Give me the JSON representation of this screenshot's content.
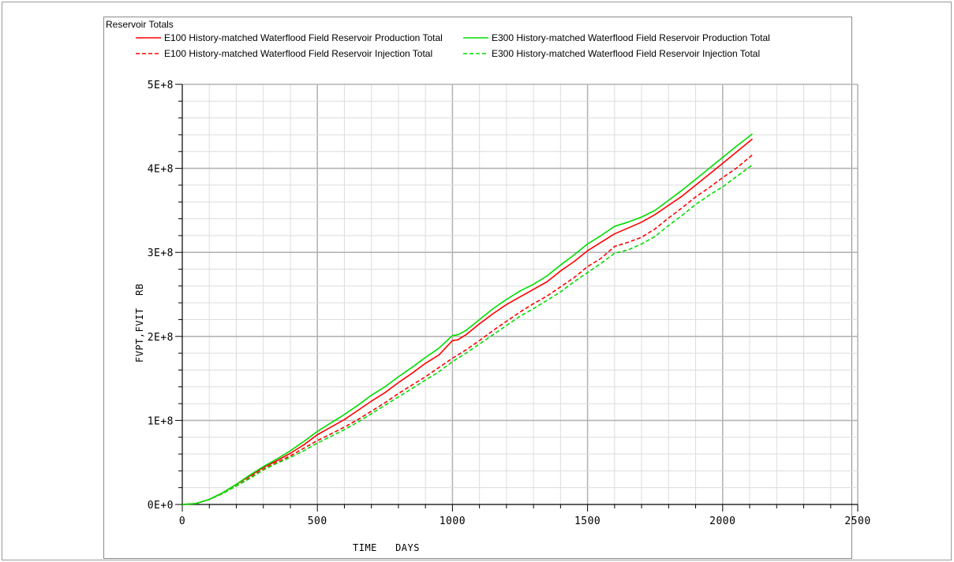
{
  "chart_data": {
    "type": "line",
    "title": "Reservoir Totals",
    "xlabel": "TIME   DAYS",
    "ylabel": "FVPT,FVIT  RB",
    "xlim": [
      0,
      2500
    ],
    "ylim": [
      0,
      500000000
    ],
    "x_ticks": [
      0,
      500,
      1000,
      1500,
      2000,
      2500
    ],
    "x_tick_labels": [
      "0",
      "500",
      "1000",
      "1500",
      "2000",
      "2500"
    ],
    "y_ticks": [
      0,
      100000000,
      200000000,
      300000000,
      400000000,
      500000000
    ],
    "y_tick_labels": [
      "0E+0",
      "1E+8",
      "2E+8",
      "3E+8",
      "4E+8",
      "5E+8"
    ],
    "grid": true,
    "legend_position": "top",
    "series": [
      {
        "name": "E100 History-matched Waterflood Field Reservoir Production Total",
        "color": "#ff0000",
        "dash": "solid",
        "x": [
          0,
          50,
          100,
          150,
          200,
          250,
          300,
          350,
          400,
          450,
          500,
          550,
          600,
          650,
          700,
          750,
          800,
          850,
          900,
          950,
          1000,
          1020,
          1050,
          1100,
          1150,
          1200,
          1250,
          1300,
          1350,
          1400,
          1450,
          1500,
          1550,
          1600,
          1650,
          1700,
          1750,
          1800,
          1850,
          1900,
          1950,
          2000,
          2050,
          2110
        ],
        "y": [
          0,
          1000000,
          6000000,
          14000000,
          24000000,
          34000000,
          44000000,
          52000000,
          61000000,
          71000000,
          83000000,
          92000000,
          101000000,
          112000000,
          123000000,
          133000000,
          145000000,
          156000000,
          168000000,
          178000000,
          195000000,
          196000000,
          202000000,
          215000000,
          227000000,
          238000000,
          247000000,
          256000000,
          265000000,
          278000000,
          289000000,
          302000000,
          312000000,
          322000000,
          329000000,
          336000000,
          345000000,
          356000000,
          367000000,
          380000000,
          393000000,
          406000000,
          419000000,
          435000000
        ]
      },
      {
        "name": "E100 History-matched Waterflood Field Reservoir Injection Total",
        "color": "#ff0000",
        "dash": "dashed",
        "x": [
          0,
          50,
          100,
          150,
          200,
          250,
          300,
          350,
          400,
          450,
          500,
          550,
          600,
          650,
          700,
          750,
          800,
          850,
          900,
          950,
          1000,
          1050,
          1100,
          1150,
          1200,
          1250,
          1300,
          1350,
          1400,
          1450,
          1500,
          1550,
          1600,
          1650,
          1700,
          1750,
          1800,
          1850,
          1900,
          1950,
          2000,
          2050,
          2110
        ],
        "y": [
          0,
          1000000,
          6000000,
          13000000,
          22000000,
          32000000,
          42000000,
          50000000,
          58000000,
          67000000,
          76000000,
          84000000,
          92000000,
          101000000,
          111000000,
          121000000,
          132000000,
          142000000,
          152000000,
          163000000,
          174000000,
          184000000,
          195000000,
          207000000,
          218000000,
          229000000,
          239000000,
          248000000,
          259000000,
          270000000,
          283000000,
          293000000,
          307000000,
          312000000,
          318000000,
          328000000,
          341000000,
          353000000,
          366000000,
          377000000,
          389000000,
          400000000,
          416000000
        ]
      },
      {
        "name": "E300 History-matched Waterflood Field Reservoir Production Total",
        "color": "#00dd00",
        "dash": "solid",
        "x": [
          0,
          50,
          100,
          150,
          200,
          250,
          300,
          350,
          400,
          450,
          500,
          550,
          600,
          650,
          700,
          750,
          800,
          850,
          900,
          950,
          1000,
          1020,
          1050,
          1100,
          1150,
          1200,
          1250,
          1300,
          1350,
          1400,
          1450,
          1500,
          1550,
          1600,
          1650,
          1700,
          1750,
          1800,
          1850,
          1900,
          1950,
          2000,
          2050,
          2110
        ],
        "y": [
          0,
          1000000,
          6000000,
          14000000,
          24000000,
          35000000,
          45000000,
          54000000,
          64000000,
          75000000,
          87000000,
          97000000,
          107000000,
          118000000,
          130000000,
          140000000,
          152000000,
          163000000,
          175000000,
          186000000,
          201000000,
          202000000,
          207000000,
          220000000,
          233000000,
          244000000,
          254000000,
          262000000,
          272000000,
          285000000,
          297000000,
          310000000,
          320000000,
          331000000,
          336000000,
          342000000,
          350000000,
          362000000,
          374000000,
          387000000,
          400000000,
          413000000,
          426000000,
          441000000
        ]
      },
      {
        "name": "E300 History-matched Waterflood Field Reservoir Injection Total",
        "color": "#00dd00",
        "dash": "dashed",
        "x": [
          0,
          50,
          100,
          150,
          200,
          250,
          300,
          350,
          400,
          450,
          500,
          550,
          600,
          650,
          700,
          750,
          800,
          850,
          900,
          950,
          1000,
          1050,
          1100,
          1150,
          1200,
          1250,
          1300,
          1350,
          1400,
          1450,
          1500,
          1550,
          1600,
          1650,
          1700,
          1750,
          1800,
          1850,
          1900,
          1950,
          2000,
          2050,
          2110
        ],
        "y": [
          0,
          1000000,
          6000000,
          13000000,
          22000000,
          31000000,
          41000000,
          49000000,
          56000000,
          64000000,
          73000000,
          81000000,
          89000000,
          98000000,
          108000000,
          118000000,
          128000000,
          138000000,
          148000000,
          158000000,
          170000000,
          180000000,
          191000000,
          202000000,
          213000000,
          224000000,
          233000000,
          243000000,
          253000000,
          265000000,
          276000000,
          287000000,
          299000000,
          303000000,
          310000000,
          319000000,
          332000000,
          344000000,
          357000000,
          368000000,
          378000000,
          390000000,
          404000000
        ]
      }
    ]
  }
}
